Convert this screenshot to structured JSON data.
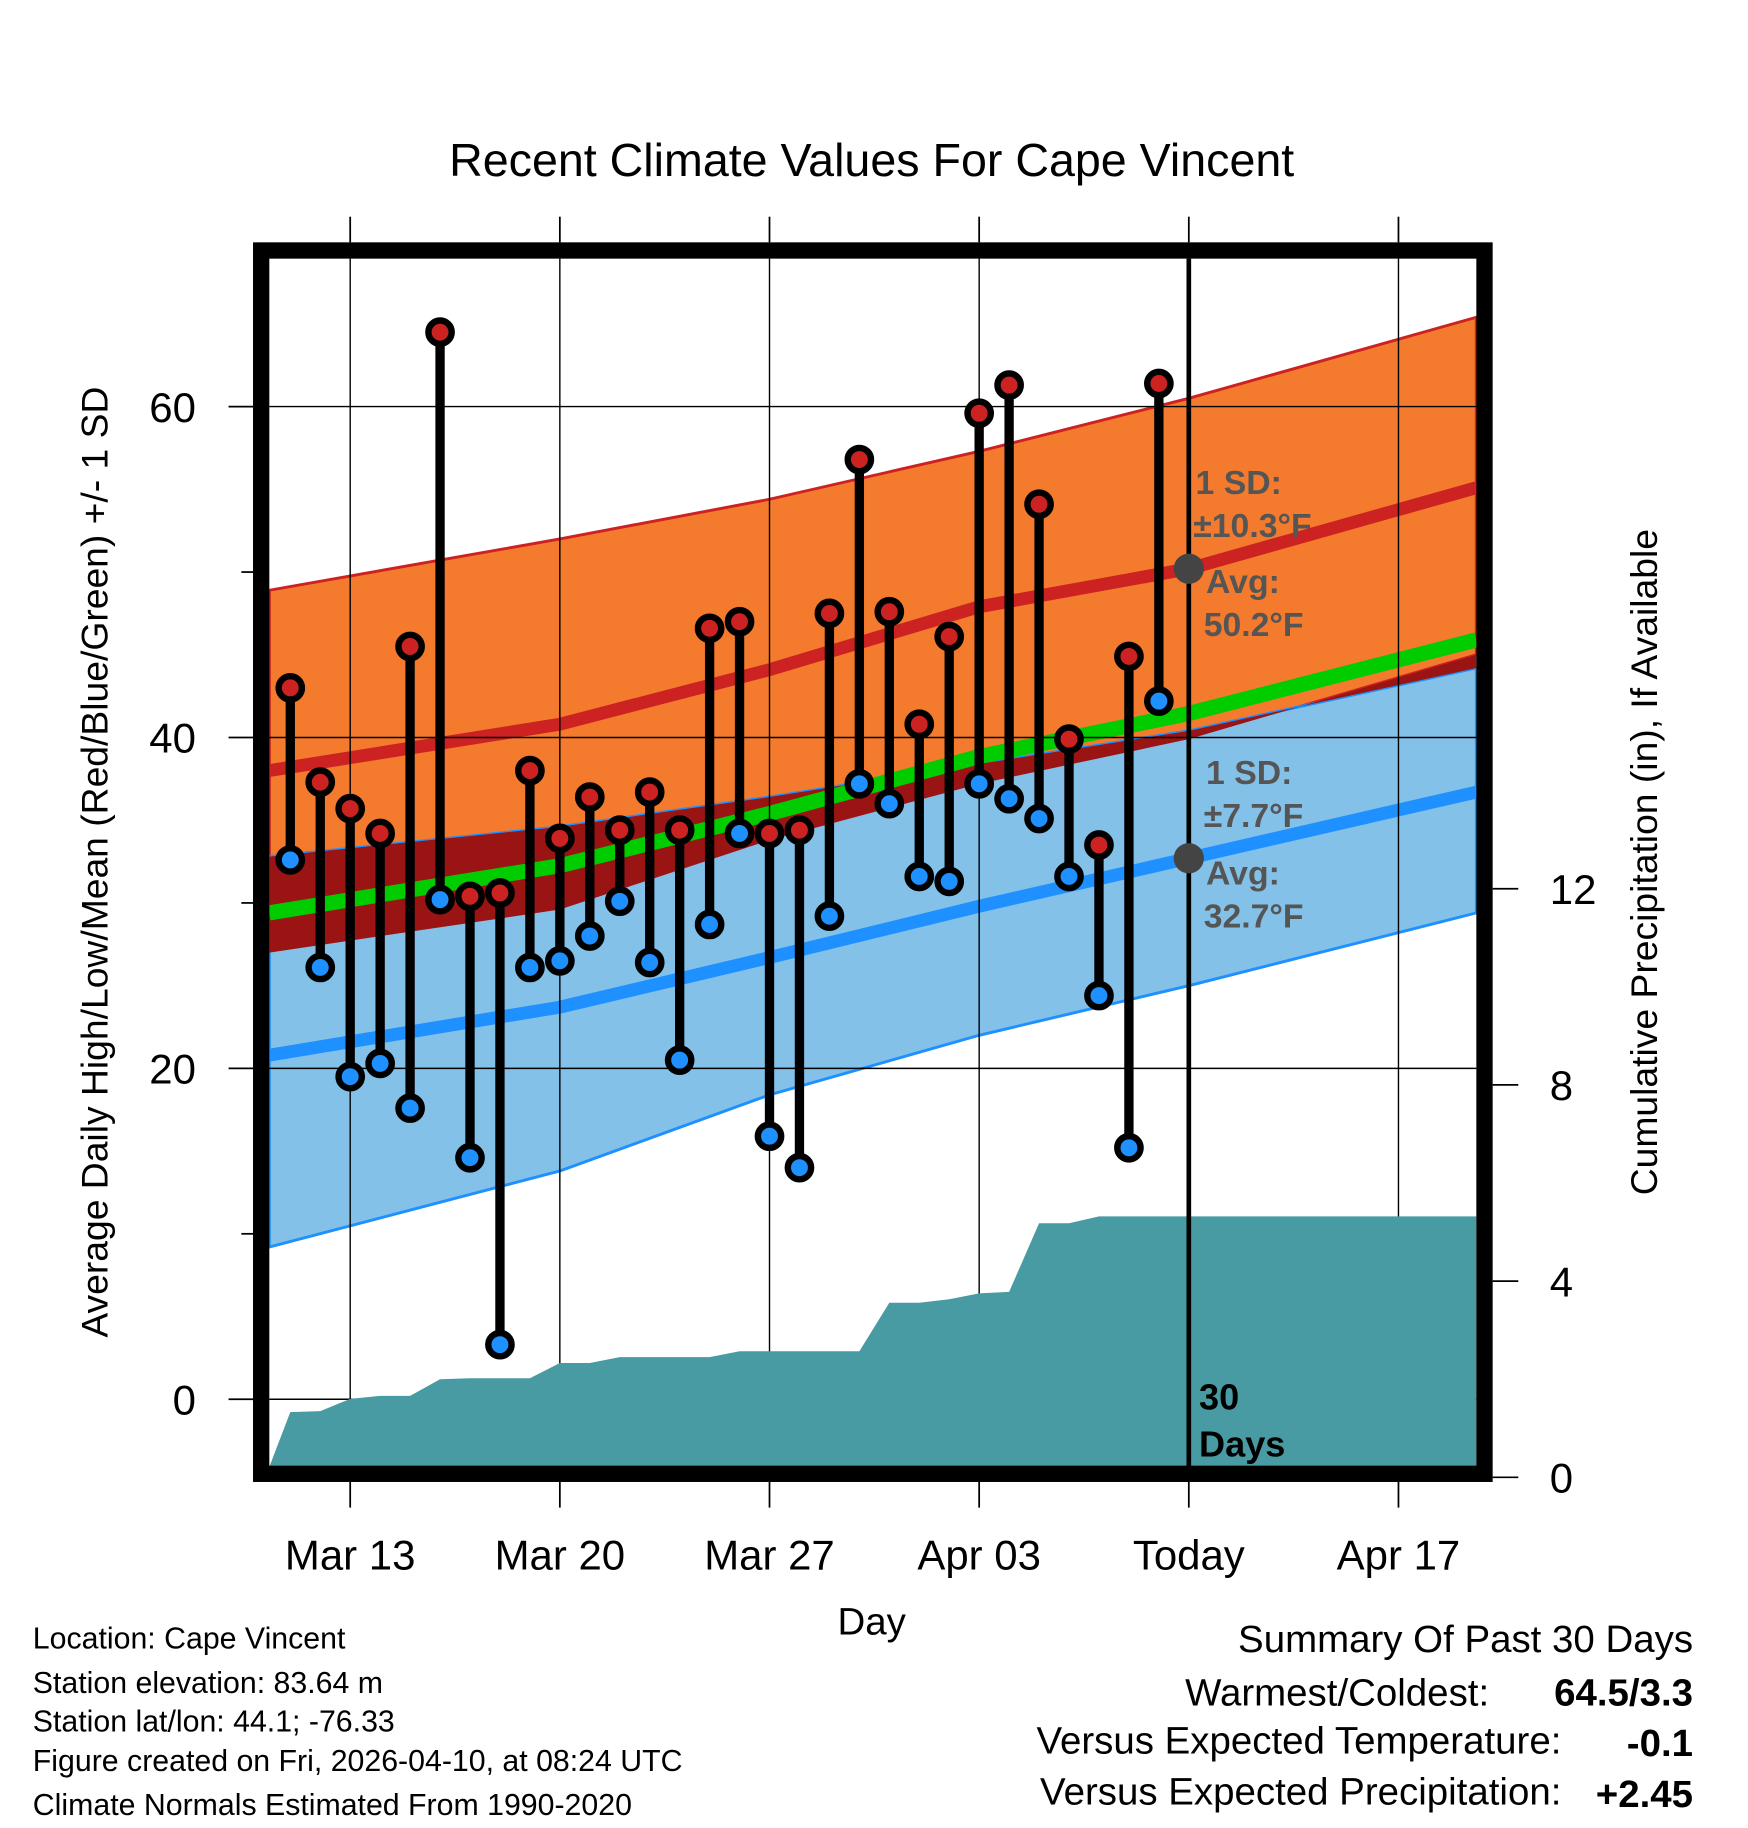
{
  "chart_data": {
    "type": "line",
    "title": "Recent Climate Values For Cape Vincent",
    "xlabel": "Day",
    "ylabel": "Average Daily High/Low/Mean (Red/Blue/Green) +/- 1 SD",
    "y2label": "Cumulative Precipitation (in), If Available",
    "x_ticks": [
      {
        "label": "Mar 13",
        "day": 0
      },
      {
        "label": "Mar 20",
        "day": 7
      },
      {
        "label": "Mar 27",
        "day": 14
      },
      {
        "label": "Apr 03",
        "day": 21
      },
      {
        "label": "Today",
        "day": 28
      },
      {
        "label": "Apr 17",
        "day": 35
      }
    ],
    "xlim_days_from_mar13": [
      -2.7,
      37.6
    ],
    "ylim": [
      -4.1,
      69
    ],
    "y_ticks": [
      0,
      20,
      40,
      60
    ],
    "y_minor_ticks": [
      10,
      30,
      50
    ],
    "y2lim": [
      0,
      16
    ],
    "y2_ticks": [
      0,
      4,
      8,
      12
    ],
    "grid": true,
    "days": [
      "Mar 11",
      "Mar 12",
      "Mar 13",
      "Mar 14",
      "Mar 15",
      "Mar 16",
      "Mar 17",
      "Mar 18",
      "Mar 19",
      "Mar 20",
      "Mar 21",
      "Mar 22",
      "Mar 23",
      "Mar 24",
      "Mar 25",
      "Mar 26",
      "Mar 27",
      "Mar 28",
      "Mar 29",
      "Mar 30",
      "Mar 31",
      "Apr 01",
      "Apr 02",
      "Apr 03",
      "Apr 04",
      "Apr 05",
      "Apr 06",
      "Apr 07",
      "Apr 08",
      "Apr 09"
    ],
    "highs": [
      43.0,
      37.3,
      35.7,
      34.2,
      45.5,
      64.5,
      30.4,
      30.6,
      38.0,
      33.9,
      36.4,
      34.4,
      36.7,
      34.4,
      46.6,
      47.0,
      34.2,
      34.4,
      47.5,
      56.8,
      47.6,
      40.8,
      46.1,
      59.6,
      61.3,
      54.1,
      39.9,
      33.5,
      44.9,
      61.4
    ],
    "lows": [
      32.6,
      26.1,
      19.5,
      20.3,
      17.6,
      30.2,
      14.6,
      3.3,
      26.1,
      26.5,
      28.0,
      30.1,
      26.4,
      20.5,
      28.7,
      34.2,
      15.9,
      14.0,
      29.2,
      37.2,
      36.0,
      31.6,
      31.3,
      37.2,
      36.3,
      35.1,
      31.6,
      24.4,
      15.2,
      42.2
    ],
    "cumulative_precip_in": [
      1.33,
      1.35,
      1.6,
      1.66,
      1.66,
      2.0,
      2.02,
      2.02,
      2.02,
      2.33,
      2.33,
      2.45,
      2.45,
      2.45,
      2.45,
      2.57,
      2.57,
      2.57,
      2.57,
      2.57,
      3.56,
      3.56,
      3.63,
      3.75,
      3.78,
      5.18,
      5.18,
      5.32,
      5.32,
      5.32
    ],
    "normals": {
      "days_from_mar13": [
        -2.7,
        7,
        14,
        21,
        28,
        37.6
      ],
      "high_mean": [
        38.0,
        40.8,
        44.1,
        47.9,
        50.2,
        55.1
      ],
      "high_upper": [
        48.9,
        52.0,
        54.4,
        57.3,
        60.5,
        65.4
      ],
      "high_lower": [
        27.0,
        29.6,
        33.8,
        37.2,
        39.9,
        45.0
      ],
      "low_mean": [
        20.8,
        23.7,
        26.7,
        29.8,
        32.7,
        36.7
      ],
      "low_upper": [
        32.8,
        34.6,
        36.4,
        38.4,
        40.4,
        44.2
      ],
      "low_lower": [
        9.2,
        13.8,
        18.4,
        22.0,
        25.0,
        29.4
      ]
    },
    "annotations": {
      "high_sd_label": "1 SD:",
      "high_sd_value": "±10.3°F",
      "high_avg_label": "Avg:",
      "high_avg_value": "50.2°F",
      "low_sd_label": "1 SD:",
      "low_sd_value": "±7.7°F",
      "low_avg_label": "Avg:",
      "low_avg_value": "32.7°F",
      "period_count": "30",
      "period_unit": "Days"
    },
    "colors": {
      "high_band": "#F47A2E",
      "high_line": "#CC2222",
      "overlap": "#9A1414",
      "low_band": "#83C1E8",
      "low_line": "#1E90FF",
      "mean_line": "#00CC00",
      "precip": "#489BA3",
      "high_dot": "#CC2222",
      "low_dot": "#1E90FF",
      "annotation": "#555555"
    }
  },
  "info": {
    "location": "Location: Cape Vincent",
    "elevation": "Station elevation: 83.64 m",
    "latlon": "Station lat/lon: 44.1; -76.33",
    "created": "Figure created on Fri, 2026-04-10, at 08:24 UTC",
    "normals": "Climate Normals Estimated From 1990-2020"
  },
  "summary": {
    "title": "Summary Of Past 30 Days",
    "warmest_coldest_label": "Warmest/Coldest:",
    "warmest_coldest_value": "64.5/3.3",
    "temp_label": "Versus Expected Temperature:",
    "temp_value": "-0.1",
    "temp_color": "#1E90FF",
    "precip_label": "Versus Expected Precipitation:",
    "precip_value": "+2.45",
    "precip_color": "#22CC22"
  }
}
